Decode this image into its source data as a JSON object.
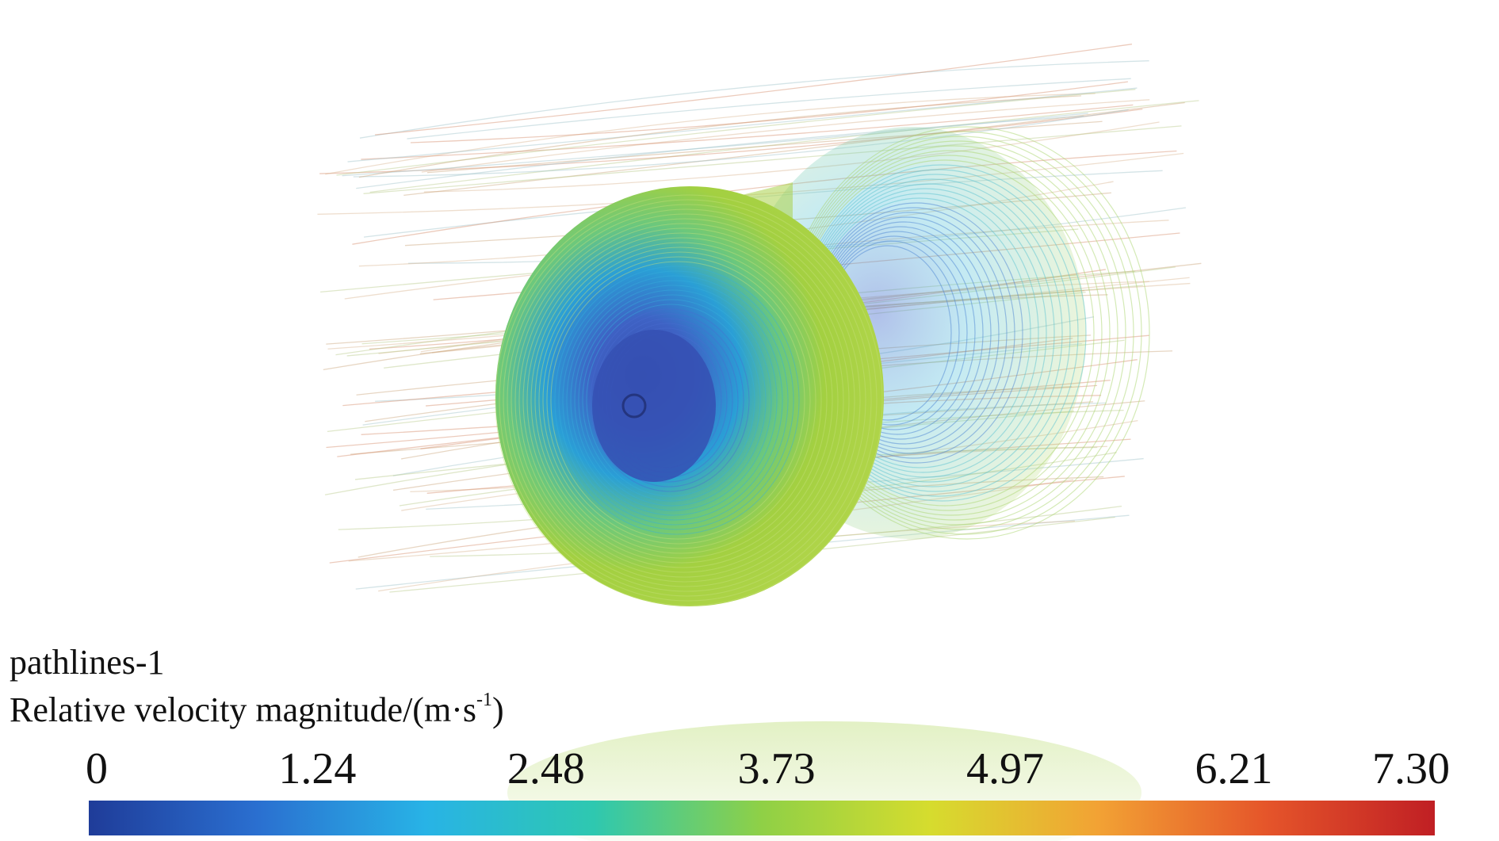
{
  "legend": {
    "plot_name": "pathlines-1",
    "variable_label": "Relative velocity magnitude/(m·s",
    "variable_exponent": "-1",
    "variable_close": ")",
    "min": 0,
    "max": 7.3,
    "ticks": [
      "0",
      "1.24",
      "2.48",
      "3.73",
      "4.97",
      "6.21",
      "7.30"
    ],
    "tick_values": [
      0,
      1.24,
      2.48,
      3.73,
      4.97,
      6.21,
      7.3
    ],
    "colormap": [
      "#1f3c99",
      "#2a6fd0",
      "#28b3e6",
      "#2ec8b0",
      "#8fd046",
      "#d6dc2e",
      "#f2a234",
      "#e5552a",
      "#c01f24"
    ]
  },
  "flow": {
    "rotor_face_color": "#9ccc3c",
    "core_color": "#3657b8",
    "inner_ring_color": "#28a8d8",
    "background_line_color": "#d48c6a"
  }
}
